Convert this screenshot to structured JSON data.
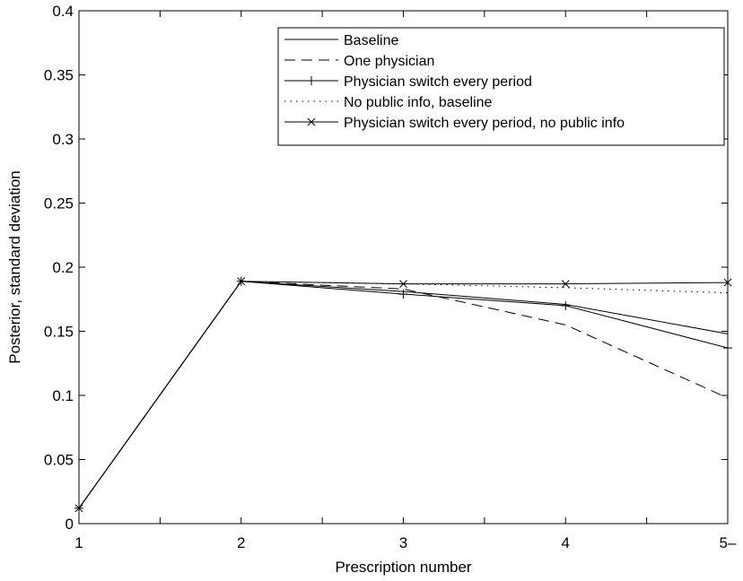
{
  "chart_data": {
    "type": "line",
    "xlabel": "Prescription number",
    "ylabel": "Posterior, standard deviation",
    "x_ticks": [
      "1",
      "2",
      "3",
      "4",
      "5–"
    ],
    "x_values": [
      1,
      2,
      3,
      4,
      5
    ],
    "xlim": [
      1,
      5
    ],
    "ylim": [
      0,
      0.4
    ],
    "y_ticks": [
      "0",
      "0.05",
      "0.1",
      "0.15",
      "0.2",
      "0.25",
      "0.3",
      "0.35",
      "0.4"
    ],
    "y_tick_values": [
      0,
      0.05,
      0.1,
      0.15,
      0.2,
      0.25,
      0.3,
      0.35,
      0.4
    ],
    "grid": false,
    "legend_position": "top-right",
    "series": [
      {
        "name": "Baseline",
        "style": "solid",
        "marker": "none",
        "values": [
          0.012,
          0.189,
          0.181,
          0.171,
          0.148
        ]
      },
      {
        "name": "One physician",
        "style": "dashed",
        "marker": "none",
        "values": [
          0.012,
          0.189,
          0.183,
          0.155,
          0.098
        ]
      },
      {
        "name": "Physician switch every period",
        "style": "solid",
        "marker": "plus",
        "values": [
          0.012,
          0.189,
          0.179,
          0.17,
          0.137
        ]
      },
      {
        "name": "No public info, baseline",
        "style": "dotted",
        "marker": "none",
        "values": [
          0.012,
          0.189,
          0.187,
          0.184,
          0.18
        ]
      },
      {
        "name": "Physician switch every period, no public info",
        "style": "solid",
        "marker": "cross",
        "values": [
          0.012,
          0.189,
          0.187,
          0.187,
          0.188
        ]
      }
    ]
  }
}
